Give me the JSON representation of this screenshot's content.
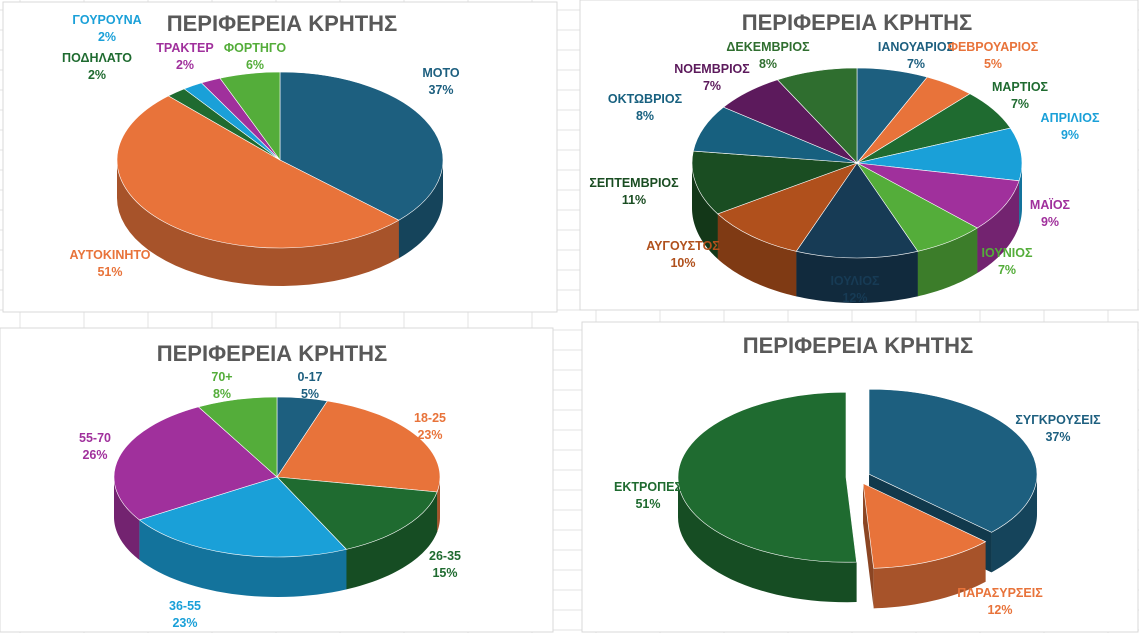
{
  "chart_data": [
    {
      "type": "pie",
      "title": "ΠΕΡΙΦΕΡΕΙΑ ΚΡΗΤΗΣ",
      "slices": [
        {
          "label": "ΜΟΤΟ",
          "value": 37,
          "pct": "37%",
          "color": "#1d5f7f"
        },
        {
          "label": "ΑΥΤΟΚΙΝΗΤΟ",
          "value": 51,
          "pct": "51%",
          "color": "#e8733a"
        },
        {
          "label": "ΠΟΔΗΛΑΤΟ",
          "value": 2,
          "pct": "2%",
          "color": "#1f6b30"
        },
        {
          "label": "ΓΟΥΡΟΥΝΑ",
          "value": 2,
          "pct": "2%",
          "color": "#1aa0d8"
        },
        {
          "label": "ΤΡΑΚΤΕΡ",
          "value": 2,
          "pct": "2%",
          "color": "#a0309c"
        },
        {
          "label": "ΦΟΡΤΗΓΟ",
          "value": 6,
          "pct": "6%",
          "color": "#54ad3a"
        }
      ]
    },
    {
      "type": "pie",
      "title": "ΠΕΡΙΦΕΡΕΙΑ ΚΡΗΤΗΣ",
      "slices": [
        {
          "label": "ΙΑΝΟΥΑΡΙΟΣ",
          "value": 7,
          "pct": "7%",
          "color": "#1d5f7f"
        },
        {
          "label": "ΦΕΒΡΟΥΑΡΙΟΣ",
          "value": 5,
          "pct": "5%",
          "color": "#e8733a"
        },
        {
          "label": "ΜΑΡΤΙΟΣ",
          "value": 7,
          "pct": "7%",
          "color": "#1f6b30"
        },
        {
          "label": "ΑΠΡΙΛΙΟΣ",
          "value": 9,
          "pct": "9%",
          "color": "#1aa0d8"
        },
        {
          "label": "ΜΑΪΟΣ",
          "value": 9,
          "pct": "9%",
          "color": "#a0309c"
        },
        {
          "label": "ΙΟΥΝΙΟΣ",
          "value": 7,
          "pct": "7%",
          "color": "#54ad3a"
        },
        {
          "label": "ΙΟΥΛΙΟΣ",
          "value": 12,
          "pct": "12%",
          "color": "#173b55"
        },
        {
          "label": "ΑΥΓΟΥΣΤΟΣ",
          "value": 10,
          "pct": "10%",
          "color": "#b0501c"
        },
        {
          "label": "ΣΕΠΤΕΜΒΡΙΟΣ",
          "value": 11,
          "pct": "11%",
          "color": "#1a4d22"
        },
        {
          "label": "ΟΚΤΩΒΡΙΟΣ",
          "value": 8,
          "pct": "8%",
          "color": "#17607f"
        },
        {
          "label": "ΝΟΕΜΒΡΙΟΣ",
          "value": 7,
          "pct": "7%",
          "color": "#5c1a5c"
        },
        {
          "label": "ΔΕΚΕΜΒΡΙΟΣ",
          "value": 8,
          "pct": "8%",
          "color": "#2f6e2f"
        }
      ]
    },
    {
      "type": "pie",
      "title": "ΠΕΡΙΦΕΡΕΙΑ ΚΡΗΤΗΣ",
      "slices": [
        {
          "label": "0-17",
          "value": 5,
          "pct": "5%",
          "color": "#1d5f7f"
        },
        {
          "label": "18-25",
          "value": 23,
          "pct": "23%",
          "color": "#e8733a"
        },
        {
          "label": "26-35",
          "value": 15,
          "pct": "15%",
          "color": "#1f6b30"
        },
        {
          "label": "36-55",
          "value": 23,
          "pct": "23%",
          "color": "#1aa0d8"
        },
        {
          "label": "55-70",
          "value": 26,
          "pct": "26%",
          "color": "#a0309c"
        },
        {
          "label": "70+",
          "value": 8,
          "pct": "8%",
          "color": "#54ad3a"
        }
      ]
    },
    {
      "type": "pie",
      "title": "ΠΕΡΙΦΕΡΕΙΑ ΚΡΗΤΗΣ",
      "exploded": true,
      "slices": [
        {
          "label": "ΣΥΓΚΡΟΥΣΕΙΣ",
          "value": 37,
          "pct": "37%",
          "color": "#1d5f7f"
        },
        {
          "label": "ΠΑΡΑΣΥΡΣΕΙΣ",
          "value": 12,
          "pct": "12%",
          "color": "#e8733a"
        },
        {
          "label": "ΕΚΤΡΟΠΕΣ",
          "value": 51,
          "pct": "51%",
          "color": "#1f6b30"
        }
      ]
    }
  ]
}
